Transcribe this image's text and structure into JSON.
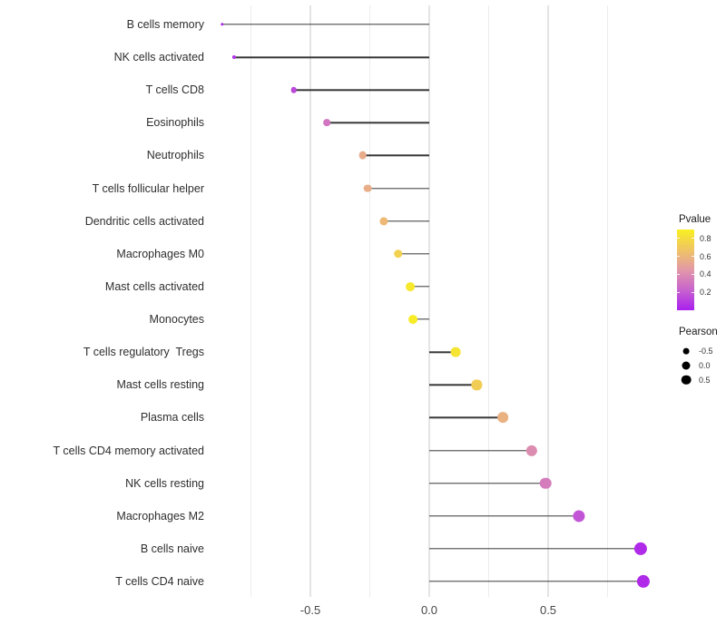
{
  "chart_data": {
    "type": "scatter",
    "subtype": "lollipop-horizontal",
    "title": "",
    "xlabel": "",
    "ylabel": "",
    "xlim": [
      -0.95,
      0.95
    ],
    "grid": "vertical-only",
    "x_ticks": [
      {
        "label": "-0.5",
        "value": -0.5
      },
      {
        "label": "0.0",
        "value": 0.0
      },
      {
        "label": "0.5",
        "value": 0.5
      }
    ],
    "minor_grid_values": [
      -0.75,
      -0.25,
      0.25,
      0.75
    ],
    "points": [
      {
        "category": "B cells memory",
        "pearson": -0.87,
        "pvalue": 0.02
      },
      {
        "category": "NK cells activated",
        "pearson": -0.82,
        "pvalue": 0.06
      },
      {
        "category": "T cells CD8",
        "pearson": -0.57,
        "pvalue": 0.14
      },
      {
        "category": "Eosinophils",
        "pearson": -0.43,
        "pvalue": 0.3
      },
      {
        "category": "Neutrophils",
        "pearson": -0.28,
        "pvalue": 0.55
      },
      {
        "category": "T cells follicular helper",
        "pearson": -0.26,
        "pvalue": 0.56
      },
      {
        "category": "Dendritic cells activated",
        "pearson": -0.19,
        "pvalue": 0.62
      },
      {
        "category": "Macrophages M0",
        "pearson": -0.13,
        "pvalue": 0.74
      },
      {
        "category": "Mast cells activated",
        "pearson": -0.08,
        "pvalue": 0.86
      },
      {
        "category": "Monocytes",
        "pearson": -0.07,
        "pvalue": 0.88
      },
      {
        "category": "T cells regulatory  Tregs",
        "pearson": 0.11,
        "pvalue": 0.84
      },
      {
        "category": "Mast cells resting",
        "pearson": 0.2,
        "pvalue": 0.72
      },
      {
        "category": "Plasma cells",
        "pearson": 0.31,
        "pvalue": 0.58
      },
      {
        "category": "T cells CD4 memory activated",
        "pearson": 0.43,
        "pvalue": 0.4
      },
      {
        "category": "NK cells resting",
        "pearson": 0.49,
        "pvalue": 0.33
      },
      {
        "category": "Macrophages M2",
        "pearson": 0.63,
        "pvalue": 0.18
      },
      {
        "category": "B cells naive",
        "pearson": 0.89,
        "pvalue": 0.04
      },
      {
        "category": "T cells CD4 naive",
        "pearson": 0.9,
        "pvalue": 0.04
      }
    ],
    "color_scale": {
      "label": "Pvalue",
      "domain": [
        0,
        0.9
      ],
      "gradient_stops_low_to_high": [
        "#A91FEF",
        "#C863CE",
        "#E298A8",
        "#F0C464",
        "#F8F020"
      ],
      "ticks": [
        {
          "label": "0.8",
          "value": 0.8
        },
        {
          "label": "0.6",
          "value": 0.6
        },
        {
          "label": "0.4",
          "value": 0.4
        },
        {
          "label": "0.2",
          "value": 0.2
        }
      ]
    },
    "size_scale": {
      "label": "Pearson",
      "entries": [
        {
          "label": "-0.5",
          "radius_px": 3.4
        },
        {
          "label": "0.0",
          "radius_px": 4.5
        },
        {
          "label": "0.5",
          "radius_px": 5.3
        }
      ]
    },
    "stem_color": "#373737",
    "gridline_color": "#e9e9e9",
    "background": "#ffffff"
  }
}
